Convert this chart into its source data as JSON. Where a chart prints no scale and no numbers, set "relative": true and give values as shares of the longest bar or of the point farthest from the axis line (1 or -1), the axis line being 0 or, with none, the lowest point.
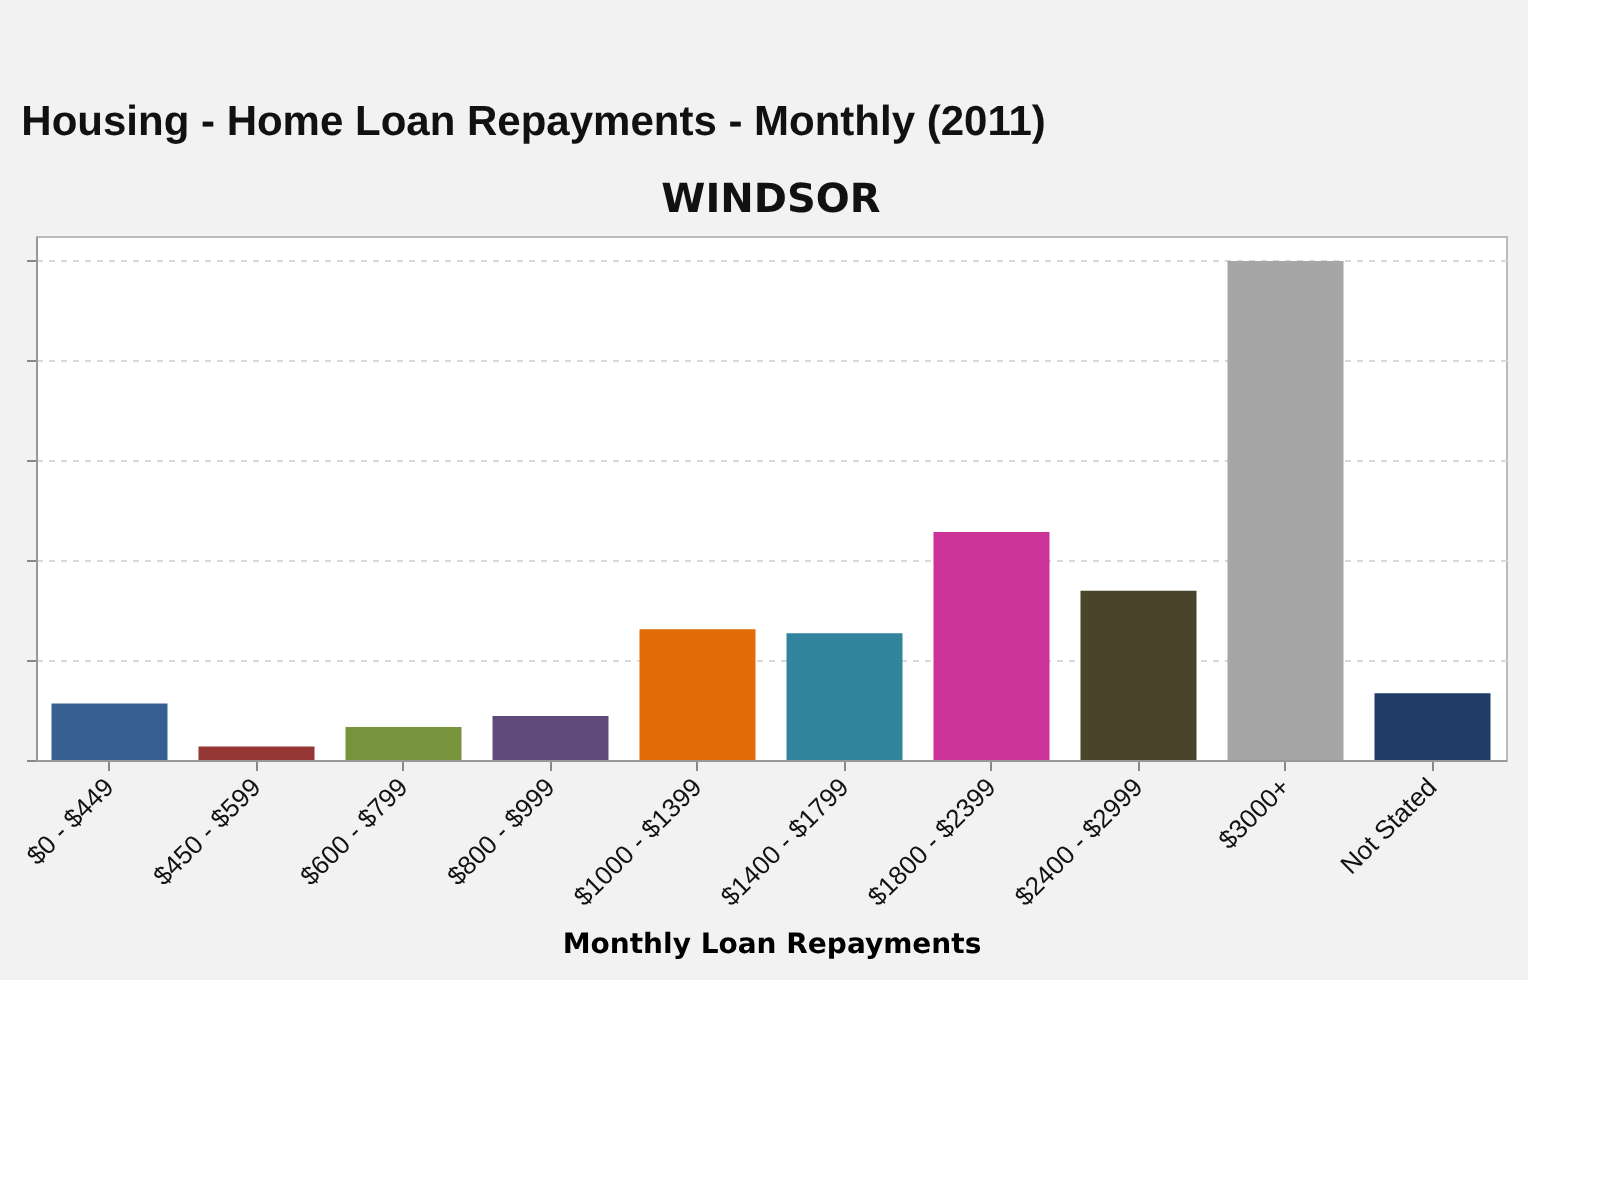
{
  "chart_data": {
    "type": "bar",
    "title": "Housing - Home Loan Repayments - Monthly (2011)",
    "subtitle": "WINDSOR",
    "xlabel": "Monthly Loan Repayments",
    "categories": [
      "$0 - $449",
      "$450 - $599",
      "$600 - $799",
      "$800 - $999",
      "$1000 - $1399",
      "$1400 - $1799",
      "$1800 - $2399",
      "$2400 - $2999",
      "$3000+",
      "Not Stated"
    ],
    "values": [
      0.113,
      0.027,
      0.066,
      0.088,
      0.262,
      0.254,
      0.457,
      0.339,
      1,
      0.134
    ],
    "colors": [
      "#366092",
      "#953735",
      "#77933c",
      "#604a7b",
      "#e36c09",
      "#31849b",
      "#cc3399",
      "#4a452a",
      "#a6a6a6",
      "#1f3d68"
    ],
    "relative": true,
    "grid": "y"
  }
}
